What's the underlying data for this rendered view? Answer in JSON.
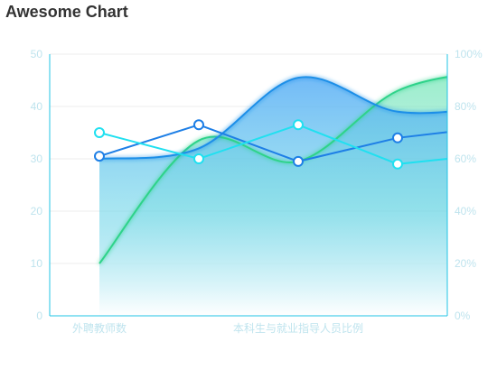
{
  "chart_data": {
    "title": "Awesome Chart",
    "type": "line",
    "x_categories": [
      "外聘教师数",
      "",
      "本科生与就业指导人员比例",
      "",
      ""
    ],
    "x_tick_labels": [
      "外聘教师数",
      "本科生与就业指导人员比例"
    ],
    "x_points": [
      0,
      1,
      2,
      3,
      4
    ],
    "y_left": {
      "ticks": [
        0,
        10,
        20,
        30,
        40,
        50
      ],
      "ylim": [
        0,
        50
      ]
    },
    "y_right": {
      "ticks": [
        "0%",
        "20%",
        "40%",
        "60%",
        "80%",
        "100%"
      ],
      "ylim": [
        0,
        100
      ]
    },
    "grid": true,
    "series": [
      {
        "color": "#2fd38a",
        "smooth": true,
        "axis": "left",
        "area": true,
        "values": [
          10,
          33.5,
          29.5,
          43,
          47
        ],
        "markers": false
      },
      {
        "color": "#1e8fe8",
        "smooth": true,
        "axis": "left",
        "area": true,
        "values": [
          30,
          32,
          45.5,
          39,
          40
        ],
        "markers": false
      },
      {
        "color": "#1e7fe6",
        "smooth": false,
        "axis": "left",
        "area": false,
        "values": [
          30.5,
          36.5,
          29.5,
          34,
          36.2
        ],
        "markers": true
      },
      {
        "color": "#20e0f0",
        "smooth": false,
        "axis": "left",
        "area": false,
        "values": [
          35,
          30,
          36.5,
          29,
          31
        ],
        "markers": true
      }
    ],
    "colors": {
      "axis": "#22c4e6",
      "tick": "#bfe4ee",
      "grid": "#eeeeee"
    }
  }
}
